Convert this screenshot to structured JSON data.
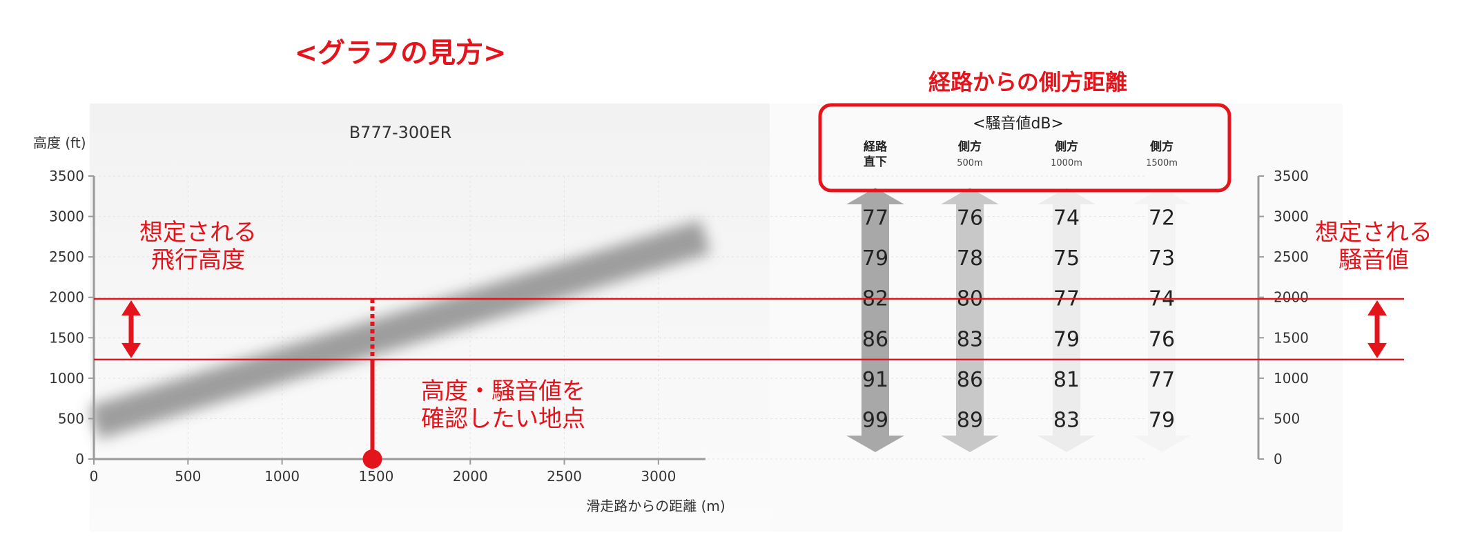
{
  "heading": "<グラフの見方>",
  "lateral_heading": "経路からの側方距離",
  "chart_data": {
    "type": "line",
    "title": "B777-300ER",
    "xlabel": "滑走路からの距離 (m)",
    "ylabel": "高度 (ft)",
    "xlim": [
      0,
      3250
    ],
    "ylim": [
      0,
      3500
    ],
    "x_ticks": [
      "0",
      "500",
      "1000",
      "1500",
      "2000",
      "2500",
      "3000"
    ],
    "y_ticks": [
      "0",
      "500",
      "1000",
      "1500",
      "2000",
      "2500",
      "3000",
      "3500"
    ],
    "right_y_ticks": [
      "0",
      "500",
      "1000",
      "1500",
      "2000",
      "2500",
      "3000",
      "3500"
    ],
    "series": [
      {
        "x": [
          0,
          3250
        ],
        "y": [
          450,
          2750
        ]
      }
    ],
    "band": {
      "y_low": 1230,
      "y_high": 1980
    },
    "marker": {
      "x": 1480,
      "y": 0
    },
    "noise_table": {
      "title": "<騒音値dB>",
      "columns": [
        {
          "label": "経路\n直下",
          "sub": "",
          "values": [
            "77",
            "79",
            "82",
            "86",
            "91",
            "99"
          ],
          "color": "#a8a8a8"
        },
        {
          "label": "側方",
          "sub": "500m",
          "values": [
            "76",
            "78",
            "80",
            "83",
            "86",
            "89"
          ],
          "color": "#c8c8c8"
        },
        {
          "label": "側方",
          "sub": "1000m",
          "values": [
            "74",
            "75",
            "77",
            "79",
            "81",
            "83"
          ],
          "color": "#ececec"
        },
        {
          "label": "側方",
          "sub": "1500m",
          "values": [
            "72",
            "73",
            "74",
            "76",
            "77",
            "79"
          ],
          "color": "#f4f4f4"
        }
      ],
      "row_altitudes": [
        3000,
        2500,
        2000,
        1500,
        1000,
        500
      ]
    }
  },
  "annotations": {
    "assumed_altitude": "想定される\n飛行高度",
    "assumed_noise": "想定される\n騒音値",
    "check_point": "高度・騒音値を\n確認したい地点"
  },
  "colors": {
    "accent": "#e3141b",
    "axis": "#9a9a9a",
    "grid": "#e2e2e2",
    "text": "#333333"
  }
}
